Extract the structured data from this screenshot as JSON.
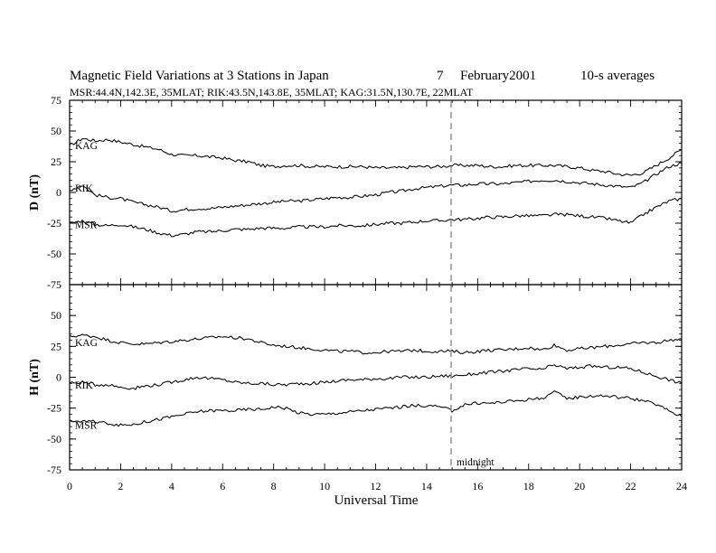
{
  "header": {
    "title": "Magnetic Field Variations at 3 Stations in Japan",
    "day": "7",
    "month_year": "February2001",
    "averaging": "10-s averages",
    "subtitle": "MSR:44.4N,142.3E, 35MLAT;  RIK:43.5N,143.8E, 35MLAT;  KAG:31.5N,130.7E, 22MLAT"
  },
  "annotation": {
    "midnight_label": "midnight"
  },
  "chart_data": [
    {
      "type": "line",
      "panel": "top",
      "ylabel": "D (nT)",
      "xlabel": "",
      "xlim": [
        0,
        24
      ],
      "ylim": [
        -75,
        75
      ],
      "xticks": [
        "0",
        "2",
        "4",
        "6",
        "8",
        "10",
        "12",
        "14",
        "16",
        "18",
        "20",
        "22",
        "24"
      ],
      "yticks": [
        "-75",
        "-50",
        "-25",
        "0",
        "25",
        "50",
        "75"
      ],
      "x": [
        0,
        0.5,
        1,
        1.5,
        2,
        2.5,
        3,
        3.5,
        4,
        4.5,
        5,
        5.5,
        6,
        6.5,
        7,
        7.5,
        8,
        8.5,
        9,
        9.5,
        10,
        10.5,
        11,
        11.5,
        12,
        12.5,
        13,
        13.5,
        14,
        14.5,
        15,
        15.5,
        16,
        16.5,
        17,
        17.5,
        18,
        18.5,
        19,
        19.5,
        20,
        20.5,
        21,
        21.5,
        22,
        22.5,
        23,
        23.5,
        24
      ],
      "series": [
        {
          "name": "KAG",
          "values": [
            38,
            44,
            42,
            43,
            41,
            39,
            37,
            35,
            31,
            30,
            30,
            29,
            28,
            26,
            25,
            22,
            21,
            22,
            22,
            21,
            21,
            21,
            21,
            21,
            20,
            20,
            20,
            21,
            21,
            21,
            22,
            22,
            22,
            21,
            21,
            22,
            22,
            22,
            22,
            21,
            20,
            18,
            17,
            15,
            14,
            16,
            22,
            28,
            35
          ]
        },
        {
          "name": "RIK",
          "values": [
            2,
            6,
            -2,
            -4,
            -5,
            -8,
            -10,
            -12,
            -15,
            -14,
            -13,
            -13,
            -12,
            -11,
            -10,
            -9,
            -8,
            -7,
            -7,
            -6,
            -5,
            -4,
            -4,
            -3,
            -2,
            0,
            1,
            3,
            4,
            5,
            6,
            6,
            7,
            7,
            7,
            8,
            9,
            10,
            10,
            9,
            8,
            7,
            6,
            5,
            4,
            8,
            15,
            21,
            24
          ]
        },
        {
          "name": "MSR",
          "values": [
            -25,
            -23,
            -26,
            -27,
            -26,
            -28,
            -30,
            -33,
            -35,
            -34,
            -32,
            -32,
            -31,
            -30,
            -30,
            -29,
            -29,
            -29,
            -28,
            -28,
            -28,
            -27,
            -27,
            -27,
            -26,
            -25,
            -25,
            -24,
            -23,
            -23,
            -22,
            -22,
            -21,
            -20,
            -20,
            -19,
            -19,
            -19,
            -18,
            -18,
            -19,
            -20,
            -21,
            -23,
            -25,
            -18,
            -12,
            -7,
            -5
          ]
        }
      ]
    },
    {
      "type": "line",
      "panel": "bottom",
      "ylabel": "H (nT)",
      "xlabel": "Universal Time",
      "xlim": [
        0,
        24
      ],
      "ylim": [
        -75,
        75
      ],
      "xticks": [
        "0",
        "2",
        "4",
        "6",
        "8",
        "10",
        "12",
        "14",
        "16",
        "18",
        "20",
        "22",
        "24"
      ],
      "yticks": [
        "-75",
        "-50",
        "-25",
        "0",
        "25",
        "50",
        "75"
      ],
      "x": [
        0,
        0.5,
        1,
        1.5,
        2,
        2.5,
        3,
        3.5,
        4,
        4.5,
        5,
        5.5,
        6,
        6.5,
        7,
        7.5,
        8,
        8.5,
        9,
        9.5,
        10,
        10.5,
        11,
        11.5,
        12,
        12.5,
        13,
        13.5,
        14,
        14.5,
        15,
        15.5,
        16,
        16.5,
        17,
        17.5,
        18,
        18.5,
        19,
        19.5,
        20,
        20.5,
        21,
        21.5,
        22,
        22.5,
        23,
        23.5,
        24
      ],
      "series": [
        {
          "name": "KAG",
          "values": [
            33,
            34,
            33,
            30,
            28,
            27,
            27,
            28,
            29,
            30,
            31,
            32,
            33,
            32,
            31,
            28,
            26,
            25,
            24,
            23,
            22,
            21,
            21,
            20,
            20,
            21,
            21,
            22,
            21,
            21,
            21,
            20,
            21,
            22,
            22,
            23,
            24,
            22,
            26,
            22,
            23,
            24,
            25,
            26,
            27,
            28,
            28,
            30,
            31
          ]
        },
        {
          "name": "RIK",
          "values": [
            -5,
            -4,
            -6,
            -6,
            -8,
            -9,
            -7,
            -6,
            -4,
            -2,
            0,
            -1,
            -2,
            -4,
            -5,
            -5,
            -6,
            -6,
            -5,
            -5,
            -4,
            -3,
            -2,
            -2,
            -1,
            -1,
            0,
            0,
            0,
            1,
            1,
            2,
            3,
            4,
            5,
            6,
            7,
            6,
            10,
            7,
            8,
            9,
            8,
            8,
            7,
            4,
            1,
            -2,
            -5
          ]
        },
        {
          "name": "MSR",
          "values": [
            -35,
            -36,
            -36,
            -37,
            -39,
            -38,
            -36,
            -34,
            -32,
            -30,
            -28,
            -27,
            -27,
            -27,
            -26,
            -26,
            -24,
            -25,
            -29,
            -30,
            -30,
            -29,
            -28,
            -27,
            -26,
            -25,
            -24,
            -23,
            -23,
            -24,
            -27,
            -22,
            -21,
            -21,
            -20,
            -19,
            -18,
            -17,
            -12,
            -17,
            -16,
            -15,
            -15,
            -16,
            -17,
            -19,
            -22,
            -27,
            -32
          ]
        }
      ]
    }
  ]
}
